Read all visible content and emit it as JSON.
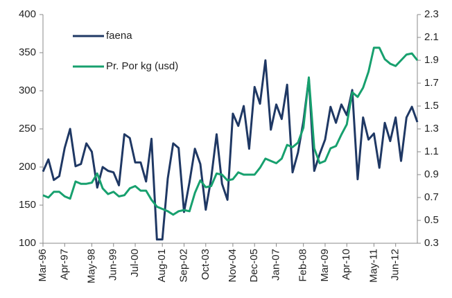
{
  "chart_data": {
    "type": "line",
    "categories": [
      "Mar-96",
      null,
      null,
      null,
      "Apr-97",
      null,
      null,
      null,
      null,
      "May-98",
      null,
      null,
      null,
      "Jun-99",
      null,
      null,
      null,
      "Jul-00",
      null,
      null,
      null,
      null,
      "Aug-01",
      null,
      null,
      null,
      "Sep-02",
      null,
      null,
      null,
      "Oct-03",
      null,
      null,
      null,
      null,
      "Nov-04",
      null,
      null,
      null,
      "Dec-05",
      null,
      null,
      null,
      "Jan-07",
      null,
      null,
      null,
      null,
      "Feb-08",
      null,
      null,
      null,
      "Mar-09",
      null,
      null,
      null,
      "Apr-10",
      null,
      null,
      null,
      null,
      "May-11",
      null,
      null,
      null,
      "Jun-12",
      null,
      null,
      null,
      null
    ],
    "series": [
      {
        "name": "faena",
        "color": "#1f3864",
        "values": [
          194,
          210,
          183,
          188,
          225,
          250,
          201,
          204,
          231,
          220,
          173,
          200,
          195,
          193,
          176,
          243,
          238,
          206,
          206,
          181,
          237,
          105,
          105,
          185,
          231,
          225,
          141,
          180,
          224,
          204,
          144,
          185,
          243,
          178,
          157,
          270,
          254,
          280,
          224,
          305,
          283,
          340,
          249,
          282,
          263,
          308,
          193,
          219,
          260,
          316,
          195,
          217,
          236,
          279,
          258,
          282,
          268,
          301,
          184,
          265,
          236,
          244,
          199,
          258,
          234,
          265,
          208,
          265,
          279,
          259
        ]
      },
      {
        "name": "Pr. Por kg (usd)",
        "color": "#17a06e",
        "axis": "y2",
        "values": [
          0.72,
          0.7,
          0.75,
          0.75,
          0.71,
          0.69,
          0.84,
          0.82,
          0.82,
          0.83,
          0.91,
          0.78,
          0.73,
          0.75,
          0.71,
          0.72,
          0.78,
          0.8,
          0.76,
          0.76,
          0.68,
          0.62,
          0.6,
          0.58,
          0.55,
          0.58,
          0.59,
          0.58,
          0.74,
          0.85,
          0.79,
          0.8,
          0.91,
          0.9,
          0.85,
          0.86,
          0.92,
          0.9,
          0.9,
          0.9,
          0.96,
          1.04,
          1.02,
          1.0,
          1.04,
          1.16,
          1.14,
          1.18,
          1.31,
          1.75,
          1.13,
          1.0,
          1.02,
          1.13,
          1.15,
          1.25,
          1.34,
          1.62,
          1.58,
          1.66,
          1.8,
          2.01,
          2.01,
          1.91,
          1.87,
          1.85,
          1.9,
          1.95,
          1.96,
          1.9
        ]
      }
    ],
    "ylim": [
      100,
      400
    ],
    "yticks": [
      100,
      150,
      200,
      250,
      300,
      350,
      400
    ],
    "y2lim": [
      0.3,
      2.3
    ],
    "y2ticks": [
      0.3,
      0.5,
      0.7,
      0.9,
      1.1,
      1.3,
      1.5,
      1.7,
      1.9,
      2.1,
      2.3
    ],
    "legend": "upper-left"
  }
}
